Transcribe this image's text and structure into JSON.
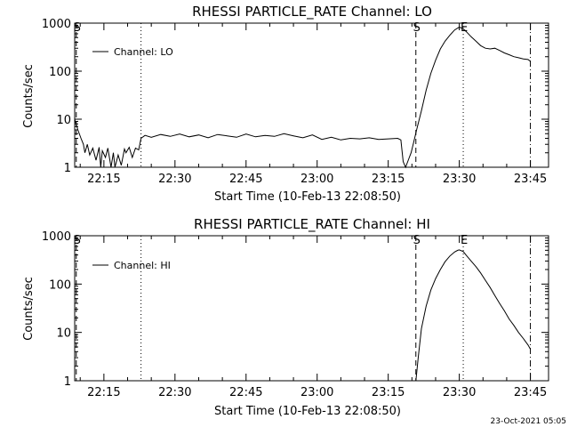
{
  "footer": {
    "timestamp": "23-Oct-2021 05:05"
  },
  "chart_data": [
    {
      "type": "line",
      "title": "RHESSI PARTICLE_RATE Channel: LO",
      "xlabel": "Start Time (10-Feb-13 22:08:50)",
      "ylabel": "Counts/sec",
      "yscale": "log",
      "ylim": [
        1,
        1000
      ],
      "xlim": [
        "22:08:50",
        "23:48:50"
      ],
      "xticks": [
        "22:15",
        "22:30",
        "22:45",
        "23:00",
        "23:15",
        "23:30",
        "23:45"
      ],
      "yticks": [
        "1",
        "10",
        "100",
        "1000"
      ],
      "legend": {
        "label": "Channel: LO",
        "position": "top-left"
      },
      "markers": [
        {
          "label": "S",
          "time": "22:09:10",
          "style": "dashed"
        },
        {
          "label": "",
          "time": "22:22:50",
          "style": "dotted"
        },
        {
          "label": "S",
          "time": "23:20:50",
          "style": "dashed"
        },
        {
          "label": "E",
          "time": "23:30:50",
          "style": "dotted"
        },
        {
          "label": "",
          "time": "23:45:00",
          "style": "dashdot"
        }
      ],
      "series": [
        {
          "x": [
            "22:08:50",
            "22:09:30",
            "22:10:10",
            "22:10:40",
            "22:11:00",
            "22:11:30",
            "22:12:00",
            "22:12:40",
            "22:13:20",
            "22:14:00",
            "22:14:20",
            "22:14:40",
            "22:15:20",
            "22:15:50",
            "22:16:30",
            "22:17:00",
            "22:17:20",
            "22:18:00",
            "22:18:40",
            "22:19:20",
            "22:19:40",
            "22:20:20",
            "22:21:00",
            "22:21:40",
            "22:22:20",
            "22:22:50",
            "22:23:40",
            "22:25:00",
            "22:27:00",
            "22:29:00",
            "22:31:00",
            "22:33:00",
            "22:35:00",
            "22:37:00",
            "22:39:00",
            "22:41:00",
            "22:43:00",
            "22:45:00",
            "22:47:00",
            "22:49:00",
            "22:51:00",
            "22:53:00",
            "22:55:00",
            "22:57:00",
            "22:59:00",
            "23:01:00",
            "23:03:00",
            "23:05:00",
            "23:07:00",
            "23:09:00",
            "23:11:00",
            "23:13:00",
            "23:15:00",
            "23:17:00",
            "23:17:40",
            "23:18:10",
            "23:18:40",
            "23:19:20",
            "23:19:50",
            "23:20:20",
            "23:21:00",
            "23:22:00",
            "23:23:00",
            "23:24:00",
            "23:25:00",
            "23:26:00",
            "23:27:00",
            "23:28:00",
            "23:29:00",
            "23:30:00",
            "23:30:50",
            "23:31:30",
            "23:32:30",
            "23:33:30",
            "23:34:30",
            "23:35:30",
            "23:36:30",
            "23:37:30",
            "23:38:30",
            "23:39:30",
            "23:40:30",
            "23:41:30",
            "23:42:30",
            "23:43:30",
            "23:44:30",
            "23:45:00"
          ],
          "y": [
            10,
            6,
            4,
            3,
            2,
            3,
            1.8,
            2.5,
            1.4,
            2.6,
            1.0,
            2.2,
            1.6,
            2.5,
            1.0,
            2.0,
            1.0,
            1.8,
            1.1,
            2.4,
            2.0,
            2.6,
            1.6,
            2.5,
            2.3,
            4.0,
            4.6,
            4.2,
            4.8,
            4.4,
            4.9,
            4.3,
            4.7,
            4.1,
            4.8,
            4.5,
            4.2,
            4.9,
            4.3,
            4.6,
            4.4,
            5.0,
            4.5,
            4.1,
            4.7,
            3.8,
            4.2,
            3.7,
            4.0,
            3.9,
            4.1,
            3.8,
            3.9,
            4.0,
            3.7,
            1.3,
            1.0,
            1.5,
            2.0,
            3.2,
            6.0,
            15,
            40,
            90,
            170,
            290,
            420,
            560,
            720,
            830,
            760,
            660,
            520,
            420,
            340,
            300,
            290,
            300,
            270,
            240,
            220,
            200,
            190,
            180,
            175,
            160
          ]
        }
      ]
    },
    {
      "type": "line",
      "title": "RHESSI PARTICLE_RATE Channel: HI",
      "xlabel": "Start Time (10-Feb-13 22:08:50)",
      "ylabel": "Counts/sec",
      "yscale": "log",
      "ylim": [
        1,
        1000
      ],
      "xlim": [
        "22:08:50",
        "23:48:50"
      ],
      "xticks": [
        "22:15",
        "22:30",
        "22:45",
        "23:00",
        "23:15",
        "23:30",
        "23:45"
      ],
      "yticks": [
        "1",
        "10",
        "100",
        "1000"
      ],
      "legend": {
        "label": "Channel: HI",
        "position": "top-left"
      },
      "markers": [
        {
          "label": "S",
          "time": "22:09:10",
          "style": "dashed"
        },
        {
          "label": "",
          "time": "22:22:50",
          "style": "dotted"
        },
        {
          "label": "S",
          "time": "23:20:50",
          "style": "dashed"
        },
        {
          "label": "E",
          "time": "23:30:50",
          "style": "dotted"
        },
        {
          "label": "",
          "time": "23:45:00",
          "style": "dashdot"
        }
      ],
      "series": [
        {
          "x": [
            "23:20:50",
            "23:21:20",
            "23:22:00",
            "23:23:00",
            "23:24:00",
            "23:25:00",
            "23:26:00",
            "23:27:00",
            "23:28:00",
            "23:29:00",
            "23:29:40",
            "23:30:00",
            "23:30:50",
            "23:31:30",
            "23:32:30",
            "23:33:30",
            "23:34:30",
            "23:35:30",
            "23:36:30",
            "23:37:30",
            "23:38:30",
            "23:39:30",
            "23:40:30",
            "23:41:30",
            "23:42:30",
            "23:43:30",
            "23:44:30",
            "23:45:00"
          ],
          "y": [
            1.0,
            3,
            12,
            35,
            75,
            130,
            200,
            290,
            380,
            460,
            500,
            510,
            470,
            390,
            300,
            230,
            170,
            120,
            85,
            58,
            40,
            28,
            19,
            14,
            10,
            7.5,
            5.5,
            4.5
          ]
        }
      ]
    }
  ]
}
